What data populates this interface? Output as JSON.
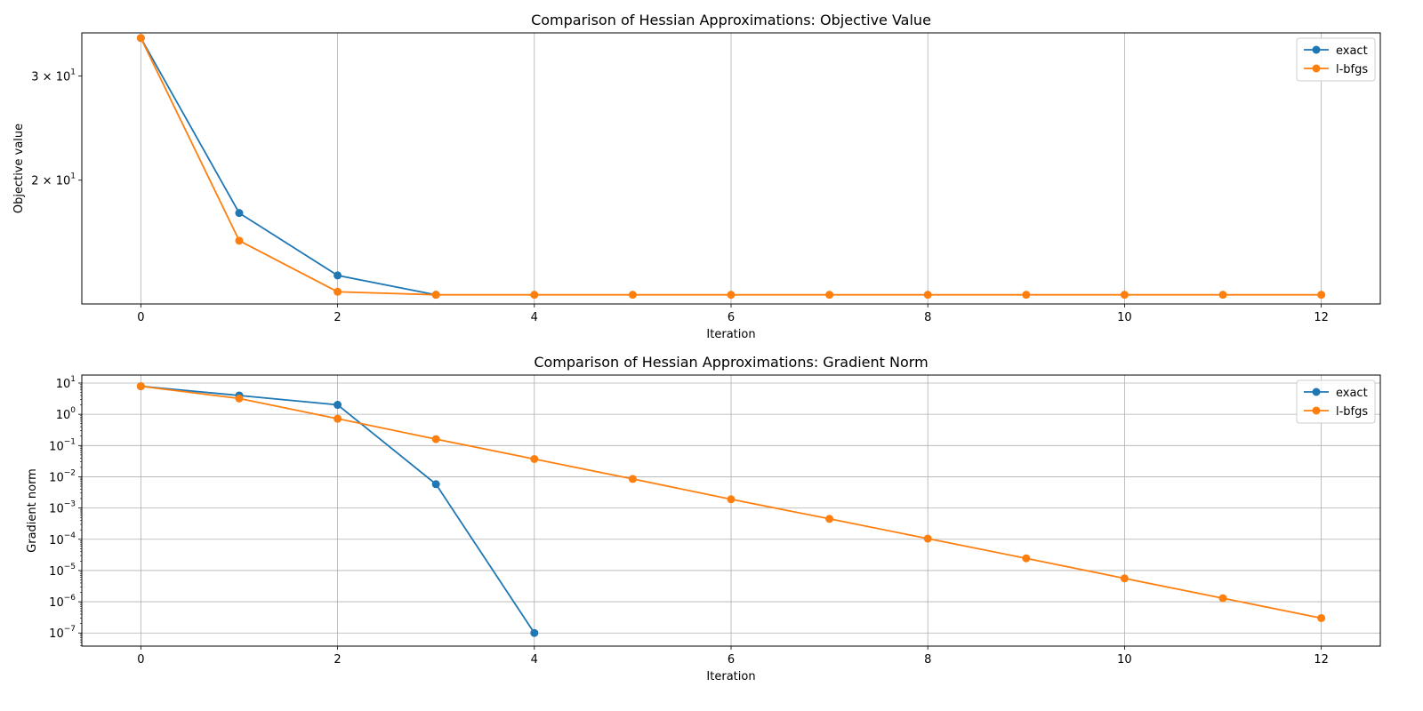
{
  "chart_data": [
    {
      "type": "line",
      "title": "Comparison of Hessian Approximations: Objective Value",
      "xlabel": "Iteration",
      "ylabel": "Objective value",
      "yscale": "log",
      "xlim": [
        -0.6,
        12.6
      ],
      "ylim": [
        12.35,
        35.5
      ],
      "x_ticks": [
        0,
        2,
        4,
        6,
        8,
        10,
        12
      ],
      "y_ticks": [
        {
          "value": 30,
          "base": "3 × 10",
          "exp": "1"
        },
        {
          "value": 20,
          "base": "2 × 10",
          "exp": "1"
        }
      ],
      "grid": "x",
      "legend": "top-right",
      "series": [
        {
          "name": "exact",
          "color": "#1f77b4",
          "x": [
            0,
            1,
            2,
            3
          ],
          "y": [
            34.8,
            17.6,
            13.8,
            12.8
          ]
        },
        {
          "name": "l-bfgs",
          "color": "#ff7f0e",
          "x": [
            0,
            1,
            2,
            3,
            4,
            5,
            6,
            7,
            8,
            9,
            10,
            11,
            12
          ],
          "y": [
            34.8,
            15.8,
            12.95,
            12.8,
            12.8,
            12.8,
            12.8,
            12.8,
            12.8,
            12.8,
            12.8,
            12.8,
            12.8
          ]
        }
      ]
    },
    {
      "type": "line",
      "title": "Comparison of Hessian Approximations: Gradient Norm",
      "xlabel": "Iteration",
      "ylabel": "Gradient norm",
      "yscale": "log",
      "xlim": [
        -0.6,
        12.6
      ],
      "ylim": [
        3.8e-08,
        18
      ],
      "x_ticks": [
        0,
        2,
        4,
        6,
        8,
        10,
        12
      ],
      "y_ticks": [
        {
          "value": 10,
          "base": "10",
          "exp": "1"
        },
        {
          "value": 1,
          "base": "10",
          "exp": "0"
        },
        {
          "value": 0.1,
          "base": "10",
          "exp": "−1"
        },
        {
          "value": 0.01,
          "base": "10",
          "exp": "−2"
        },
        {
          "value": 0.001,
          "base": "10",
          "exp": "−3"
        },
        {
          "value": 0.0001,
          "base": "10",
          "exp": "−4"
        },
        {
          "value": 1e-05,
          "base": "10",
          "exp": "−5"
        },
        {
          "value": 1e-06,
          "base": "10",
          "exp": "−6"
        },
        {
          "value": 1e-07,
          "base": "10",
          "exp": "−7"
        }
      ],
      "grid": "both",
      "legend": "top-right",
      "series": [
        {
          "name": "exact",
          "color": "#1f77b4",
          "x": [
            0,
            1,
            2,
            3,
            4
          ],
          "y": [
            7.9,
            4.0,
            2.0,
            0.0058,
            1e-07
          ]
        },
        {
          "name": "l-bfgs",
          "color": "#ff7f0e",
          "x": [
            0,
            1,
            2,
            3,
            4,
            5,
            6,
            7,
            8,
            9,
            10,
            11,
            12
          ],
          "y": [
            7.9,
            3.2,
            0.72,
            0.16,
            0.037,
            0.0085,
            0.0019,
            0.00045,
            0.000105,
            2.45e-05,
            5.6e-06,
            1.3e-06,
            3e-07
          ]
        }
      ]
    }
  ]
}
